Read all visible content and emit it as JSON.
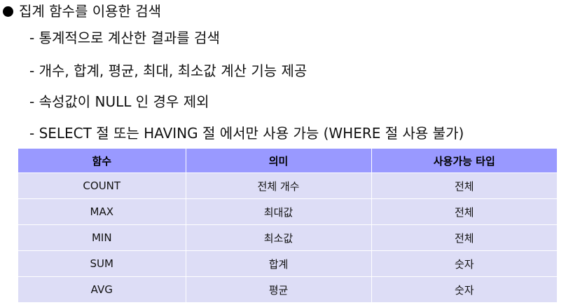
{
  "heading": "집계 함수를 이용한 검색",
  "items": [
    "- 통계적으로 계산한 결과를 검색",
    "- 개수, 합계, 평균, 최대, 최소값 계산 기능 제공",
    "- 속성값이 NULL 인 경우 제외",
    "- SELECT 절 또는 HAVING 절 에서만 사용 가능 (WHERE 절 사용 불가)"
  ],
  "table": {
    "headers": [
      "함수",
      "의미",
      "사용가능 타입"
    ],
    "rows": [
      [
        "COUNT",
        "전체 개수",
        "전체"
      ],
      [
        "MAX",
        "최대값",
        "전체"
      ],
      [
        "MIN",
        "최소값",
        "전체"
      ],
      [
        "SUM",
        "합계",
        "숫자"
      ],
      [
        "AVG",
        "평균",
        "숫자"
      ]
    ]
  },
  "colors": {
    "header_bg": "#9999ff",
    "row_bg": "#ddddf6"
  }
}
